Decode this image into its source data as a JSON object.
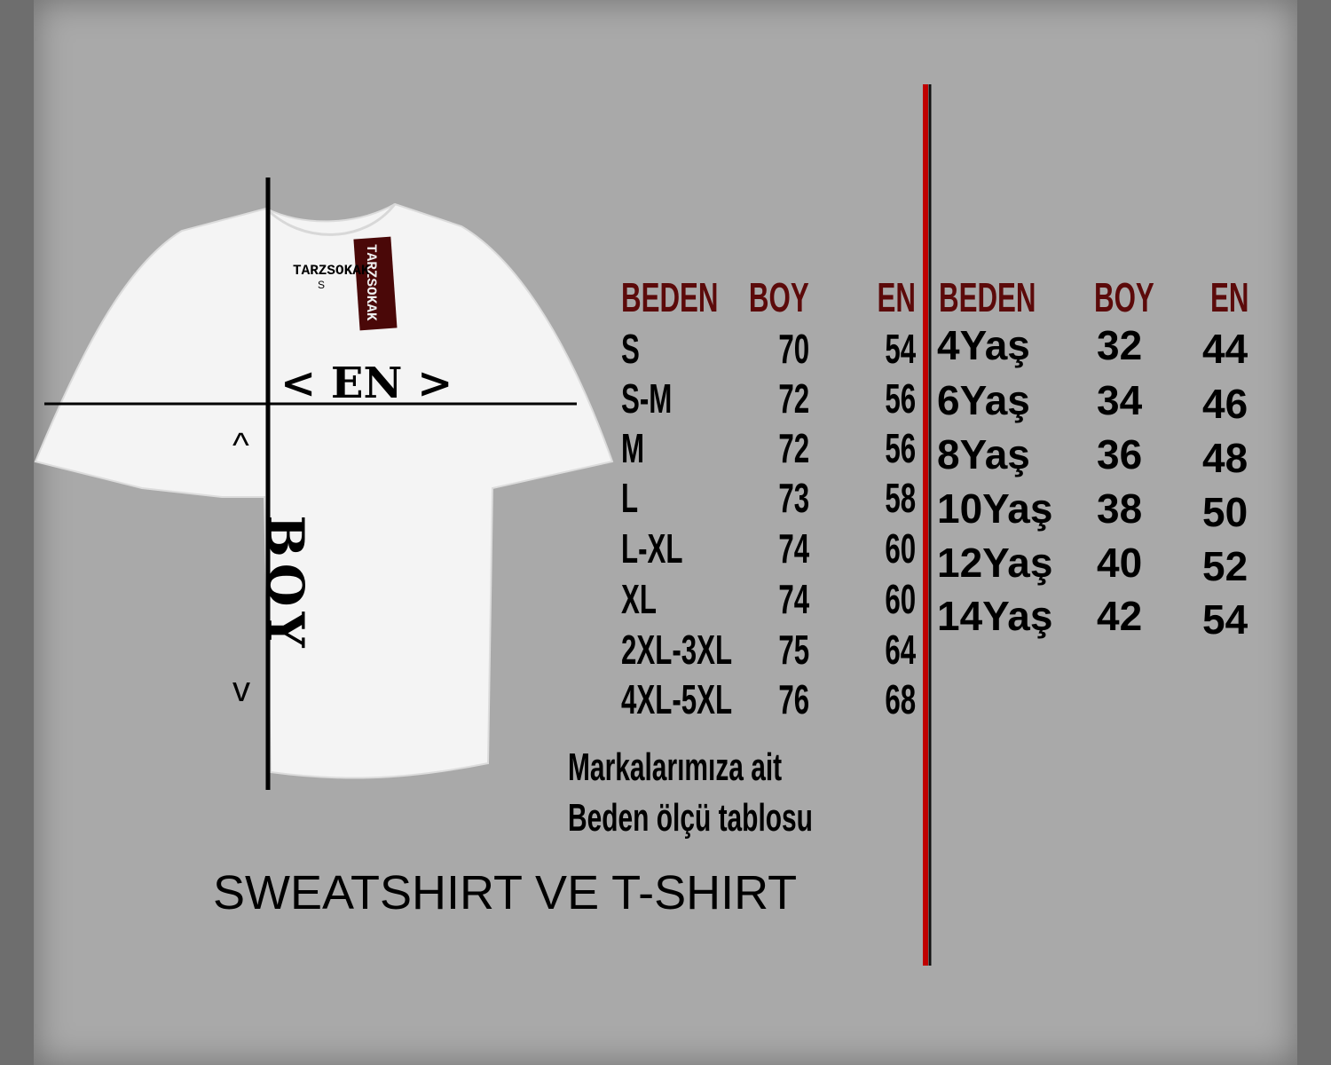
{
  "shirt": {
    "neck_label": "TARZSOKAK",
    "neck_size": "S",
    "hang_tag": "TARZSOKAK"
  },
  "diagram": {
    "width_marker": "< EN >",
    "length_marker": "BOY",
    "arrow_up": "^",
    "arrow_down": "v"
  },
  "adult_table": {
    "headers": [
      "BEDEN",
      "BOY",
      "EN"
    ],
    "rows": [
      [
        "S",
        "70",
        "54"
      ],
      [
        "S-M",
        "72",
        "56"
      ],
      [
        "M",
        "72",
        "56"
      ],
      [
        "L",
        "73",
        "58"
      ],
      [
        "L-XL",
        "74",
        "60"
      ],
      [
        "XL",
        "74",
        "60"
      ],
      [
        "2XL-3XL",
        "75",
        "64"
      ],
      [
        "4XL-5XL",
        "76",
        "68"
      ]
    ]
  },
  "kids_table": {
    "headers": [
      "BEDEN",
      "BOY",
      "EN"
    ],
    "rows": [
      [
        "4Yaş",
        "32",
        "44"
      ],
      [
        "6Yaş",
        "34",
        "46"
      ],
      [
        "8Yaş",
        "36",
        "48"
      ],
      [
        "10Yaş",
        "38",
        "50"
      ],
      [
        "12Yaş",
        "40",
        "52"
      ],
      [
        "14Yaş",
        "42",
        "54"
      ]
    ]
  },
  "caption": {
    "line1": "Markalarımıza ait",
    "line2": "Beden ölçü tablosu"
  },
  "footer_title": "SWEATSHIRT VE T-SHIRT",
  "colors": {
    "header": "#5c0a0a",
    "divider": "#c00000",
    "background": "#a9a9a9"
  }
}
